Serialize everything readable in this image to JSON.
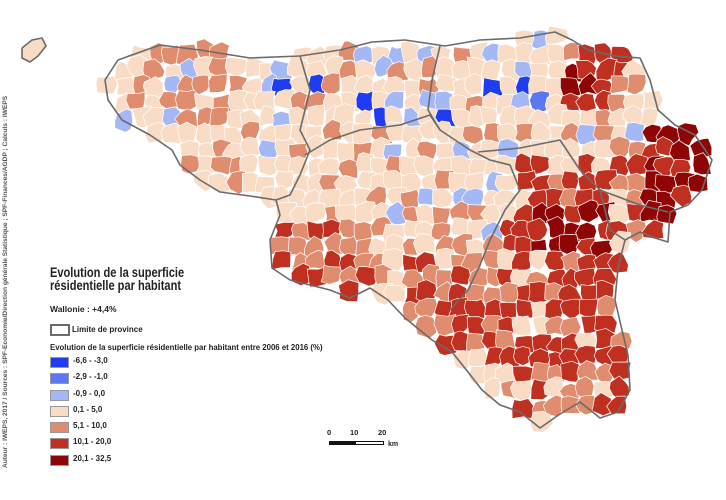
{
  "credit": "Auteur : IWEPS, 2017 / Sources : SPF-Economie/Direction générale Statistique ; SPF-Finances/AGDP ; Calculs : IWEPS",
  "title_line1": "Evolution de la superficie",
  "title_line2": "résidentielle par habitant",
  "wallonie_label": "Wallonie : +4,4%",
  "province_limit_label": "Limite de province",
  "legend_title": "Evolution de la superficie résidentielle par habitant entre 2006 et 2016 (%)",
  "legend": [
    {
      "label": "-6,6 - -3,0",
      "color": "#1e3df0"
    },
    {
      "label": "-2,9 - -1,0",
      "color": "#5b78f2"
    },
    {
      "label": "-0,9 - 0,0",
      "color": "#a4b8f5"
    },
    {
      "label": "0,1 - 5,0",
      "color": "#f8dcc6"
    },
    {
      "label": "5,1 - 10,0",
      "color": "#df8c6f"
    },
    {
      "label": "10,1 - 20,0",
      "color": "#c03020"
    },
    {
      "label": "20,1 - 32,5",
      "color": "#8e0505"
    }
  ],
  "scale": {
    "ticks": [
      "0",
      "10",
      "20"
    ],
    "unit": "km"
  },
  "colors": {
    "border": "#ffffff",
    "province": "#6b6b6b"
  }
}
